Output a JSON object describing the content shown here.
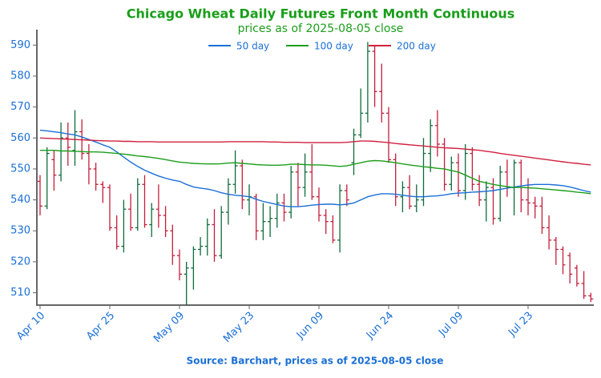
{
  "chart_data": {
    "type": "ohlc",
    "title": "Chicago Wheat Daily Futures Front Month Continuous",
    "subtitle": "prices as of 2025-08-05 close",
    "source": "Source: Barchart, prices as of 2025-08-05 close",
    "categories": [
      "Apr 10",
      null,
      null,
      null,
      null,
      null,
      null,
      null,
      null,
      null,
      "Apr 25",
      null,
      null,
      null,
      null,
      null,
      null,
      null,
      null,
      null,
      "May 09",
      null,
      null,
      null,
      null,
      null,
      null,
      null,
      null,
      null,
      "May 23",
      null,
      null,
      null,
      null,
      null,
      null,
      null,
      null,
      null,
      "Jun 09",
      null,
      null,
      null,
      null,
      null,
      null,
      null,
      null,
      null,
      "Jun 24",
      null,
      null,
      null,
      null,
      null,
      null,
      null,
      null,
      null,
      "Jul 09",
      null,
      null,
      null,
      null,
      null,
      null,
      null,
      null,
      null,
      "Jul 23",
      null,
      null,
      null,
      null,
      null,
      null,
      null,
      null,
      null
    ],
    "open": [
      546,
      538,
      553,
      548,
      560,
      556,
      562,
      555,
      550,
      545,
      544,
      531,
      525,
      537,
      531,
      545,
      532,
      537,
      535,
      530,
      522,
      516,
      518,
      524,
      525,
      532,
      522,
      536,
      545,
      551,
      540,
      541,
      530,
      533,
      534,
      539,
      536,
      549,
      544,
      549,
      541,
      535,
      533,
      527,
      543,
      552,
      561,
      568,
      588,
      575,
      568,
      553,
      541,
      544,
      538,
      540,
      555,
      564,
      558,
      545,
      552,
      543,
      555,
      545,
      540,
      544,
      534,
      549,
      544,
      552,
      540,
      539,
      538,
      531,
      527,
      524,
      522,
      518,
      513,
      509
    ],
    "high": [
      548,
      557,
      556,
      565,
      565,
      569,
      566,
      558,
      552,
      546,
      545,
      535,
      540,
      542,
      547,
      548,
      539,
      545,
      538,
      532,
      524,
      520,
      525,
      528,
      534,
      537,
      538,
      547,
      556,
      553,
      545,
      542,
      539,
      538,
      542,
      542,
      551,
      552,
      555,
      558,
      544,
      537,
      535,
      545,
      545,
      563,
      576,
      591,
      590,
      584,
      570,
      555,
      546,
      548,
      545,
      560,
      566,
      569,
      560,
      554,
      555,
      558,
      557,
      548,
      546,
      547,
      551,
      553,
      553,
      553,
      547,
      541,
      541,
      535,
      528,
      525,
      523,
      519,
      517,
      510
    ],
    "low": [
      535,
      537,
      543,
      546,
      551,
      551,
      553,
      545,
      543,
      539,
      530,
      524,
      523,
      530,
      530,
      531,
      528,
      531,
      528,
      519,
      514,
      506,
      511,
      522,
      522,
      520,
      521,
      532,
      542,
      537,
      535,
      527,
      527,
      528,
      531,
      533,
      534,
      538,
      541,
      540,
      533,
      529,
      526,
      523,
      538,
      548,
      560,
      565,
      570,
      565,
      552,
      538,
      536,
      537,
      536,
      538,
      549,
      554,
      543,
      543,
      541,
      540,
      543,
      538,
      533,
      532,
      533,
      541,
      535,
      536,
      535,
      534,
      529,
      524,
      519,
      516,
      513,
      512,
      508,
      507
    ],
    "close": [
      538,
      555,
      548,
      560,
      557,
      562,
      555,
      550,
      545,
      544,
      531,
      525,
      537,
      531,
      545,
      532,
      537,
      535,
      530,
      522,
      516,
      518,
      524,
      525,
      532,
      522,
      536,
      545,
      551,
      540,
      541,
      530,
      533,
      534,
      539,
      536,
      549,
      544,
      549,
      541,
      535,
      533,
      527,
      543,
      540,
      561,
      568,
      588,
      575,
      568,
      553,
      541,
      544,
      538,
      540,
      555,
      564,
      558,
      545,
      552,
      543,
      555,
      545,
      540,
      544,
      534,
      549,
      544,
      552,
      540,
      539,
      538,
      531,
      527,
      524,
      519,
      516,
      513,
      509,
      508
    ],
    "up_color": "#0f6b3a",
    "down_color": "#c41e3a",
    "series": [
      {
        "name": "50 day",
        "color": "#1a6fd6",
        "values": [
          562.5,
          562.3,
          562,
          561.7,
          561.3,
          561,
          560.3,
          559.5,
          558.7,
          557.8,
          557,
          555.5,
          553.8,
          552.2,
          550.8,
          549.6,
          548.6,
          547.7,
          547,
          546.4,
          546,
          545,
          544.2,
          543.8,
          543.5,
          543,
          542.3,
          541.8,
          541.5,
          541.3,
          541,
          540.2,
          539.5,
          539,
          538.5,
          538,
          537.8,
          537.8,
          538,
          538.3,
          538.5,
          538.6,
          538.6,
          538.4,
          538.6,
          539,
          540,
          541,
          541.6,
          542,
          542,
          541.8,
          541.5,
          541.2,
          541,
          541,
          541.2,
          541.3,
          541.6,
          542,
          542.2,
          542.3,
          542.5,
          542.6,
          542.8,
          543,
          543.4,
          543.8,
          544.2,
          544.5,
          544.8,
          545,
          545,
          545,
          544.8,
          544.6,
          544.2,
          543.6,
          543,
          542.5
        ]
      },
      {
        "name": "100 day",
        "color": "#1a9e1a",
        "values": [
          556,
          556,
          556,
          555.8,
          555.8,
          555.7,
          555.6,
          555.5,
          555.5,
          555.4,
          555.2,
          555,
          554.8,
          554.5,
          554.2,
          554,
          553.7,
          553.4,
          553,
          552.6,
          552.2,
          552,
          551.8,
          551.7,
          551.6,
          551.6,
          551.7,
          551.9,
          552,
          551.8,
          551.6,
          551.4,
          551.3,
          551.2,
          551.2,
          551.3,
          551.5,
          551.5,
          551.4,
          551.3,
          551.3,
          551.2,
          551,
          550.8,
          551,
          551.5,
          552,
          552.5,
          552.7,
          552.6,
          552.3,
          552,
          551.6,
          551.3,
          551,
          550.7,
          550.5,
          550.2,
          550,
          549.5,
          549,
          548,
          547,
          546,
          545.5,
          545,
          544.6,
          544.3,
          544,
          544,
          543.9,
          543.8,
          543.6,
          543.4,
          543.2,
          543,
          542.8,
          542.5,
          542.3,
          542
        ]
      },
      {
        "name": "200 day",
        "color": "#d0203e",
        "values": [
          560,
          559.9,
          559.8,
          559.7,
          559.6,
          559.5,
          559.4,
          559.3,
          559.2,
          559.1,
          559,
          559,
          558.9,
          558.9,
          558.8,
          558.8,
          558.8,
          558.7,
          558.7,
          558.7,
          558.7,
          558.7,
          558.7,
          558.7,
          558.7,
          558.7,
          558.7,
          558.8,
          558.8,
          558.8,
          558.8,
          558.8,
          558.8,
          558.7,
          558.7,
          558.6,
          558.6,
          558.6,
          558.5,
          558.5,
          558.5,
          558.5,
          558.5,
          558.5,
          558.6,
          558.8,
          559,
          559,
          558.9,
          558.7,
          558.5,
          558.2,
          558,
          557.8,
          557.6,
          557.4,
          557.2,
          557,
          556.8,
          556.7,
          556.6,
          556.4,
          556.2,
          556,
          555.7,
          555.4,
          555,
          554.7,
          554.4,
          554.1,
          553.8,
          553.5,
          553.2,
          552.9,
          552.6,
          552.3,
          552,
          551.8,
          551.5,
          551.3
        ]
      }
    ],
    "ylim": [
      506,
      595
    ],
    "yticks": [
      510,
      520,
      530,
      540,
      550,
      560,
      570,
      580,
      590
    ],
    "legend": "top"
  }
}
